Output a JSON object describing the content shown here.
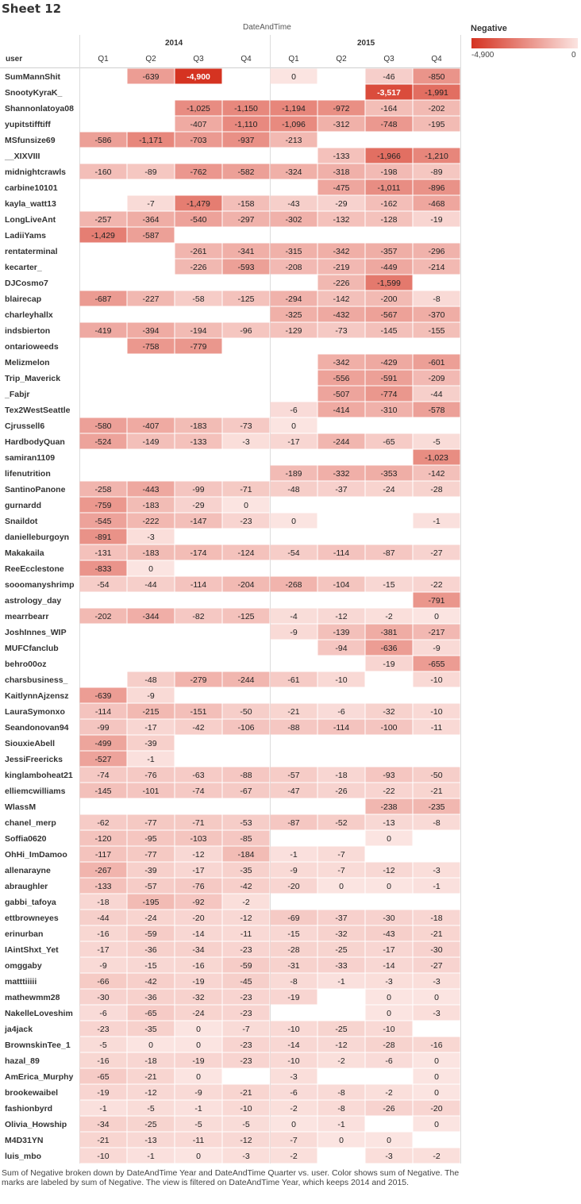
{
  "sheet_title": "Sheet 12",
  "caption": "Sum of Negative broken down by DateAndTime Year and DateAndTime Quarter vs. user.  Color shows sum of Negative.  The marks are labeled by sum of Negative. The view is filtered on DateAndTime Year, which keeps 2014 and 2015.",
  "legend": {
    "title": "Negative",
    "min_label": "-4,900",
    "max_label": "0",
    "min": -4900,
    "max": 0,
    "color_dark": "#d53321",
    "color_light": "#fbe4e1"
  },
  "chart_data": {
    "type": "heatmap",
    "column_header": "DateAndTime",
    "row_header": "user",
    "years": [
      "2014",
      "2015"
    ],
    "quarters": [
      "Q1",
      "Q2",
      "Q3",
      "Q4"
    ],
    "rows": [
      {
        "user": "SumMannShit",
        "values": [
          null,
          -639,
          -4900,
          null,
          0,
          null,
          -46,
          -850
        ]
      },
      {
        "user": "SnootyKyraK_",
        "values": [
          null,
          null,
          null,
          null,
          null,
          null,
          -3517,
          -1991
        ]
      },
      {
        "user": "Shannonlatoya08",
        "values": [
          null,
          null,
          -1025,
          -1150,
          -1194,
          -972,
          -164,
          -202
        ]
      },
      {
        "user": "yupitstifftiff",
        "values": [
          null,
          null,
          -407,
          -1110,
          -1096,
          -312,
          -748,
          -195
        ]
      },
      {
        "user": "MSfunsize69",
        "values": [
          -586,
          -1171,
          -703,
          -937,
          -213,
          null,
          null,
          null
        ]
      },
      {
        "user": "__XIXVIII",
        "values": [
          null,
          null,
          null,
          null,
          null,
          -133,
          -1966,
          -1210
        ]
      },
      {
        "user": "midnightcrawls",
        "values": [
          -160,
          -89,
          -762,
          -582,
          -324,
          -318,
          -198,
          -89
        ]
      },
      {
        "user": "carbine10101",
        "values": [
          null,
          null,
          null,
          null,
          null,
          -475,
          -1011,
          -896
        ]
      },
      {
        "user": "kayla_watt13",
        "values": [
          null,
          -7,
          -1479,
          -158,
          -43,
          -29,
          -162,
          -468
        ]
      },
      {
        "user": "LongLiveAnt",
        "values": [
          -257,
          -364,
          -540,
          -297,
          -302,
          -132,
          -128,
          -19
        ]
      },
      {
        "user": "LadiiYams",
        "values": [
          -1429,
          -587,
          null,
          null,
          null,
          null,
          null,
          null
        ]
      },
      {
        "user": "rentaterminal",
        "values": [
          null,
          null,
          -261,
          -341,
          -315,
          -342,
          -357,
          -296
        ]
      },
      {
        "user": "kecarter_",
        "values": [
          null,
          null,
          -226,
          -593,
          -208,
          -219,
          -449,
          -214
        ]
      },
      {
        "user": "DJCosmo7",
        "values": [
          null,
          null,
          null,
          null,
          null,
          -226,
          -1599,
          null
        ]
      },
      {
        "user": "blairecap",
        "values": [
          -687,
          -227,
          -58,
          -125,
          -294,
          -142,
          -200,
          -8
        ]
      },
      {
        "user": "charleyhallx",
        "values": [
          null,
          null,
          null,
          null,
          -325,
          -432,
          -567,
          -370
        ]
      },
      {
        "user": "indsbierton",
        "values": [
          -419,
          -394,
          -194,
          -96,
          -129,
          -73,
          -145,
          -155
        ]
      },
      {
        "user": "ontarioweeds",
        "values": [
          null,
          -758,
          -779,
          null,
          null,
          null,
          null,
          null
        ]
      },
      {
        "user": "Melizmelon",
        "values": [
          null,
          null,
          null,
          null,
          null,
          -342,
          -429,
          -601
        ]
      },
      {
        "user": "Trip_Maverick",
        "values": [
          null,
          null,
          null,
          null,
          null,
          -556,
          -591,
          -209
        ]
      },
      {
        "user": "_Fabjr",
        "values": [
          null,
          null,
          null,
          null,
          null,
          -507,
          -774,
          -44
        ]
      },
      {
        "user": "Tex2WestSeattle",
        "values": [
          null,
          null,
          null,
          null,
          -6,
          -414,
          -310,
          -578
        ]
      },
      {
        "user": "Cjrussell6",
        "values": [
          -580,
          -407,
          -183,
          -73,
          0,
          null,
          null,
          null
        ]
      },
      {
        "user": "HardbodyQuan",
        "values": [
          -524,
          -149,
          -133,
          -3,
          -17,
          -244,
          -65,
          -5
        ]
      },
      {
        "user": "samiran1109",
        "values": [
          null,
          null,
          null,
          null,
          null,
          null,
          null,
          -1023
        ]
      },
      {
        "user": "lifenutrition",
        "values": [
          null,
          null,
          null,
          null,
          -189,
          -332,
          -353,
          -142
        ]
      },
      {
        "user": "SantinoPanone",
        "values": [
          -258,
          -443,
          -99,
          -71,
          -48,
          -37,
          -24,
          -28
        ]
      },
      {
        "user": "gurnardd",
        "values": [
          -759,
          -183,
          -29,
          0,
          null,
          null,
          null,
          null
        ]
      },
      {
        "user": "Snaildot",
        "values": [
          -545,
          -222,
          -147,
          -23,
          0,
          null,
          null,
          -1
        ]
      },
      {
        "user": "danielleburgoyn",
        "values": [
          -891,
          -3,
          null,
          null,
          null,
          null,
          null,
          null
        ]
      },
      {
        "user": "Makakaila",
        "values": [
          -131,
          -183,
          -174,
          -124,
          -54,
          -114,
          -87,
          -27
        ]
      },
      {
        "user": "ReeEcclestone",
        "values": [
          -833,
          0,
          null,
          null,
          null,
          null,
          null,
          null
        ]
      },
      {
        "user": "sooomanyshrimp",
        "values": [
          -54,
          -44,
          -114,
          -204,
          -268,
          -104,
          -15,
          -22
        ]
      },
      {
        "user": "astrology_day",
        "values": [
          null,
          null,
          null,
          null,
          null,
          null,
          null,
          -791
        ]
      },
      {
        "user": "mearrbearr",
        "values": [
          -202,
          -344,
          -82,
          -125,
          -4,
          -12,
          -2,
          0
        ]
      },
      {
        "user": "JoshInnes_WIP",
        "values": [
          null,
          null,
          null,
          null,
          -9,
          -139,
          -381,
          -217
        ]
      },
      {
        "user": "MUFCfanclub",
        "values": [
          null,
          null,
          null,
          null,
          null,
          -94,
          -636,
          -9
        ]
      },
      {
        "user": "behro00oz",
        "values": [
          null,
          null,
          null,
          null,
          null,
          null,
          -19,
          -655
        ]
      },
      {
        "user": "charsbusiness_",
        "values": [
          null,
          -48,
          -279,
          -244,
          -61,
          -10,
          null,
          -10
        ]
      },
      {
        "user": "KaitlynnAjzensz",
        "values": [
          -639,
          -9,
          null,
          null,
          null,
          null,
          null,
          null
        ]
      },
      {
        "user": "LauraSymonxo",
        "values": [
          -114,
          -215,
          -151,
          -50,
          -21,
          -6,
          -32,
          -10
        ]
      },
      {
        "user": "Seandonovan94",
        "values": [
          -99,
          -17,
          -42,
          -106,
          -88,
          -114,
          -100,
          -11
        ]
      },
      {
        "user": "SiouxieAbell",
        "values": [
          -499,
          -39,
          null,
          null,
          null,
          null,
          null,
          null
        ]
      },
      {
        "user": "JessiFreericks",
        "values": [
          -527,
          -1,
          null,
          null,
          null,
          null,
          null,
          null
        ]
      },
      {
        "user": "kinglamboheat21",
        "values": [
          -74,
          -76,
          -63,
          -88,
          -57,
          -18,
          -93,
          -50
        ]
      },
      {
        "user": "elliemcwilliams",
        "values": [
          -145,
          -101,
          -74,
          -67,
          -47,
          -26,
          -22,
          -21
        ]
      },
      {
        "user": "WlassM",
        "values": [
          null,
          null,
          null,
          null,
          null,
          null,
          -238,
          -235
        ]
      },
      {
        "user": "chanel_merp",
        "values": [
          -62,
          -77,
          -71,
          -53,
          -87,
          -52,
          -13,
          -8
        ]
      },
      {
        "user": "Soffia0620",
        "values": [
          -120,
          -95,
          -103,
          -85,
          null,
          null,
          0,
          null
        ]
      },
      {
        "user": "OhHi_ImDamoo",
        "values": [
          -117,
          -77,
          -12,
          -184,
          -1,
          -7,
          null,
          null
        ]
      },
      {
        "user": "allenarayne",
        "values": [
          -267,
          -39,
          -17,
          -35,
          -9,
          -7,
          -12,
          -3
        ]
      },
      {
        "user": "abraughler",
        "values": [
          -133,
          -57,
          -76,
          -42,
          -20,
          0,
          0,
          -1
        ]
      },
      {
        "user": "gabbi_tafoya",
        "values": [
          -18,
          -195,
          -92,
          -2,
          null,
          null,
          null,
          null
        ]
      },
      {
        "user": "ettbrowneyes",
        "values": [
          -44,
          -24,
          -20,
          -12,
          -69,
          -37,
          -30,
          -18
        ]
      },
      {
        "user": "erinurban",
        "values": [
          -16,
          -59,
          -14,
          -11,
          -15,
          -32,
          -43,
          -21
        ]
      },
      {
        "user": "IAintShxt_Yet",
        "values": [
          -17,
          -36,
          -34,
          -23,
          -28,
          -25,
          -17,
          -30
        ]
      },
      {
        "user": "omggaby",
        "values": [
          -9,
          -15,
          -16,
          -59,
          -31,
          -33,
          -14,
          -27
        ]
      },
      {
        "user": "matttiiiii",
        "values": [
          -66,
          -42,
          -19,
          -45,
          -8,
          -1,
          -3,
          -3
        ]
      },
      {
        "user": "mathewmm28",
        "values": [
          -30,
          -36,
          -32,
          -23,
          -19,
          null,
          0,
          0
        ]
      },
      {
        "user": "NakelleLoveshim",
        "values": [
          -6,
          -65,
          -24,
          -23,
          null,
          null,
          0,
          -3
        ]
      },
      {
        "user": "ja4jack",
        "values": [
          -23,
          -35,
          0,
          -7,
          -10,
          -25,
          -10,
          null
        ]
      },
      {
        "user": "BrownskinTee_1",
        "values": [
          -5,
          0,
          0,
          -23,
          -14,
          -12,
          -28,
          -16
        ]
      },
      {
        "user": "hazal_89",
        "values": [
          -16,
          -18,
          -19,
          -23,
          -10,
          -2,
          -6,
          0
        ]
      },
      {
        "user": "AmErica_Murphy",
        "values": [
          -65,
          -21,
          0,
          null,
          -3,
          null,
          null,
          0
        ]
      },
      {
        "user": "brookewaibel",
        "values": [
          -19,
          -12,
          -9,
          -21,
          -6,
          -8,
          -2,
          0
        ]
      },
      {
        "user": "fashionbyrd",
        "values": [
          -1,
          -5,
          -1,
          -10,
          -2,
          -8,
          -26,
          -20
        ]
      },
      {
        "user": "Olivia_Howship",
        "values": [
          -34,
          -25,
          -5,
          -5,
          0,
          -1,
          null,
          0
        ]
      },
      {
        "user": "M4D31YN",
        "values": [
          -21,
          -13,
          -11,
          -12,
          -7,
          0,
          0,
          null
        ]
      },
      {
        "user": "luis_mbo",
        "values": [
          -10,
          -1,
          0,
          -3,
          -2,
          null,
          -3,
          -2
        ]
      }
    ]
  }
}
